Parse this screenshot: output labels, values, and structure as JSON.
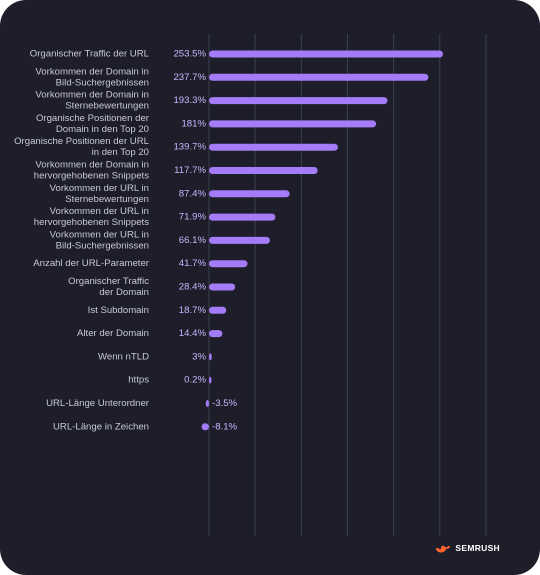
{
  "colors": {
    "background": "#1d1e29",
    "bar": "#a47cf8",
    "value_text": "#c8b5ff",
    "label_text": "#c9cad3",
    "grid": "#3d3f4d",
    "brand_icon": "#ff642d"
  },
  "brand": {
    "name": "SEMRUSH",
    "icon": "semrush-fire-icon"
  },
  "chart_data": {
    "type": "bar",
    "orientation": "horizontal",
    "xlim": [
      -10,
      300
    ],
    "grid": true,
    "categories": [
      [
        "Organischer Traffic der URL"
      ],
      [
        "Vorkommen der Domain in",
        "Bild-Suchergebnissen"
      ],
      [
        "Vorkommen der Domain in",
        "Sternebewertungen"
      ],
      [
        "Organische Positionen der",
        "Domain in den Top 20"
      ],
      [
        "Organische Positionen der URL",
        "in den Top 20"
      ],
      [
        "Vorkommen der Domain in",
        "hervorgehobenen Snippets"
      ],
      [
        "Vorkommen der URL in",
        "Sternebewertungen"
      ],
      [
        "Vorkommen der URL in",
        "hervorgehobenen Snippets"
      ],
      [
        "Vorkommen der URL in",
        "Bild-Suchergebnissen"
      ],
      [
        "Anzahl der URL-Parameter"
      ],
      [
        "Organischer Traffic",
        "der Domain"
      ],
      [
        "Ist Subdomain"
      ],
      [
        "Alter der Domain"
      ],
      [
        "Wenn nTLD"
      ],
      [
        "https"
      ],
      [
        "URL-Länge Unterordner"
      ],
      [
        "URL-Länge in Zeichen"
      ]
    ],
    "values": [
      253.5,
      237.7,
      193.3,
      181,
      139.7,
      117.7,
      87.4,
      71.9,
      66.1,
      41.7,
      28.4,
      18.7,
      14.4,
      3,
      0.2,
      -3.5,
      -8.1
    ],
    "value_labels": [
      "253.5%",
      "237.7%",
      "193.3%",
      "181%",
      "139.7%",
      "117.7%",
      "87.4%",
      "71.9%",
      "66.1%",
      "41.7%",
      "28.4%",
      "18.7%",
      "14.4%",
      "3%",
      "0.2%",
      "-3.5%",
      "-8.1%"
    ]
  }
}
